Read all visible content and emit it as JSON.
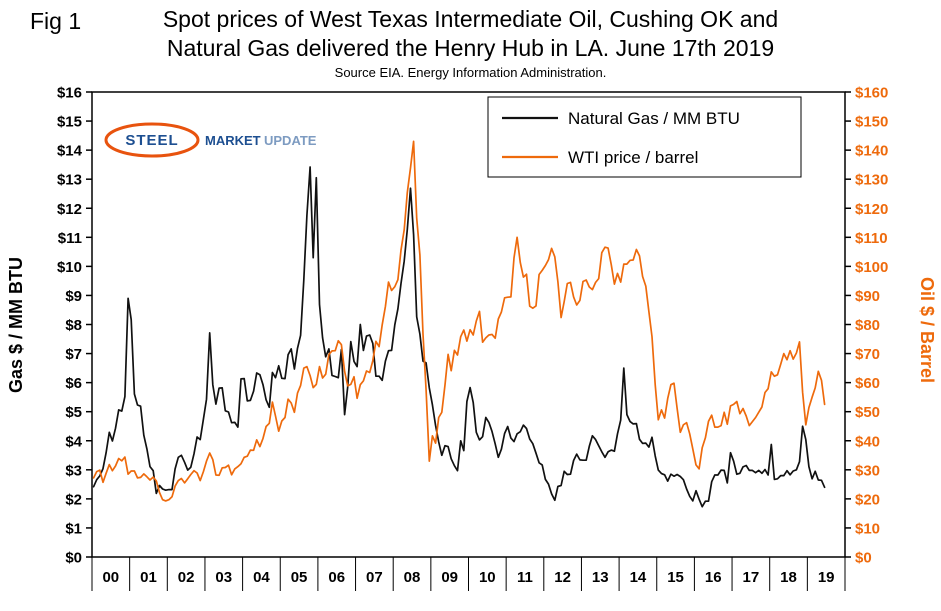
{
  "header": {
    "fig_label": "Fig 1",
    "title_line1": "Spot prices of West Texas Intermediate Oil, Cushing OK and",
    "title_line2": "Natural Gas delivered the Henry Hub in LA. June 17th 2019",
    "source": "Source EIA. Energy Information Administration."
  },
  "logo": {
    "word1": "STEEL",
    "word2": "MARKET",
    "word3": "UPDATE"
  },
  "colors": {
    "gas_line": "#111111",
    "oil_line": "#ee6a0c",
    "axis_black": "#000000",
    "logo_orange": "#e8530e",
    "logo_blue": "#1d4f91",
    "logo_light_blue": "#7d9bc1"
  },
  "chart_data": {
    "type": "line",
    "title": "Spot prices of West Texas Intermediate Oil, Cushing OK and Natural Gas delivered the Henry Hub in LA. June 17th 2019",
    "subtitle": "Source EIA. Energy Information Administration.",
    "grid": false,
    "legend_position": "top-right",
    "x_start_year": 2000,
    "x_range": [
      2000,
      2020
    ],
    "x_label_years": [
      "00",
      "01",
      "02",
      "03",
      "04",
      "05",
      "06",
      "07",
      "08",
      "09",
      "10",
      "11",
      "12",
      "13",
      "14",
      "15",
      "16",
      "17",
      "18",
      "19"
    ],
    "left_axis": {
      "title": "Gas $ / MM BTU",
      "ylim": [
        0,
        16
      ],
      "tick_step": 1,
      "tick_prefix": "$",
      "color": "#000000"
    },
    "right_axis": {
      "title": "Oil $ / Barrel",
      "ylim": [
        0,
        160
      ],
      "tick_step": 10,
      "tick_prefix": "$",
      "color": "#ee6a0c"
    },
    "series": [
      {
        "name": "Natural Gas / MM BTU",
        "axis": "left",
        "color": "#111111",
        "monthly_values": [
          2.42,
          2.66,
          2.79,
          3.04,
          3.59,
          4.29,
          3.99,
          4.43,
          5.06,
          5.02,
          5.52,
          8.9,
          8.17,
          5.61,
          5.23,
          5.19,
          4.19,
          3.72,
          3.11,
          2.97,
          2.19,
          2.46,
          2.34,
          2.3,
          2.32,
          2.32,
          3.03,
          3.43,
          3.5,
          3.26,
          2.99,
          3.09,
          3.55,
          4.13,
          4.04,
          4.74,
          5.43,
          7.71,
          5.93,
          5.26,
          5.81,
          5.82,
          5.03,
          4.99,
          4.62,
          4.63,
          4.47,
          6.13,
          6.14,
          5.37,
          5.39,
          5.71,
          6.33,
          6.27,
          5.93,
          5.41,
          5.15,
          6.35,
          6.17,
          6.58,
          6.15,
          6.14,
          6.96,
          7.16,
          6.47,
          7.18,
          7.63,
          9.53,
          11.75,
          13.42,
          10.3,
          13.05,
          8.69,
          7.54,
          6.89,
          7.16,
          6.25,
          6.21,
          6.17,
          7.14,
          4.9,
          5.85,
          7.41,
          6.73,
          6.55,
          8.0,
          7.11,
          7.6,
          7.64,
          7.35,
          6.22,
          6.22,
          6.08,
          6.74,
          7.1,
          7.11,
          7.99,
          8.54,
          9.41,
          10.18,
          11.27,
          12.69,
          11.09,
          8.26,
          7.67,
          6.74,
          6.68,
          5.82,
          5.24,
          4.52,
          3.96,
          3.5,
          3.83,
          3.8,
          3.38,
          3.14,
          2.97,
          4.0,
          3.66,
          5.35,
          5.83,
          5.32,
          4.29,
          4.03,
          4.14,
          4.8,
          4.63,
          4.32,
          3.89,
          3.43,
          3.71,
          4.25,
          4.49,
          4.09,
          3.97,
          4.24,
          4.31,
          4.54,
          4.42,
          4.06,
          3.9,
          3.57,
          3.24,
          3.17,
          2.67,
          2.51,
          2.17,
          1.95,
          2.43,
          2.46,
          2.95,
          2.84,
          2.85,
          3.32,
          3.54,
          3.34,
          3.33,
          3.33,
          3.81,
          4.17,
          4.04,
          3.83,
          3.62,
          3.43,
          3.62,
          3.68,
          3.64,
          4.24,
          4.71,
          6.5,
          4.9,
          4.66,
          4.58,
          4.59,
          4.05,
          3.91,
          3.92,
          3.78,
          4.12,
          3.48,
          2.99,
          2.87,
          2.83,
          2.61,
          2.85,
          2.78,
          2.84,
          2.77,
          2.66,
          2.34,
          2.09,
          1.93,
          2.28,
          1.99,
          1.73,
          1.92,
          1.92,
          2.59,
          2.82,
          2.82,
          2.99,
          2.98,
          2.55,
          3.59,
          3.3,
          2.85,
          2.88,
          3.1,
          3.15,
          2.98,
          2.98,
          2.9,
          2.98,
          2.88,
          3.01,
          2.82,
          3.87,
          2.67,
          2.69,
          2.8,
          2.8,
          2.97,
          2.83,
          2.96,
          3.0,
          3.28,
          4.5,
          4.04,
          3.11,
          2.69,
          2.95,
          2.65,
          2.64,
          2.4
        ]
      },
      {
        "name": "WTI price / barrel",
        "axis": "right",
        "color": "#ee6a0c",
        "monthly_values": [
          27.2,
          29.4,
          29.9,
          25.7,
          28.8,
          31.8,
          29.7,
          31.3,
          33.9,
          33.1,
          34.4,
          28.5,
          29.6,
          29.6,
          27.2,
          27.4,
          28.6,
          27.6,
          26.5,
          27.5,
          26.2,
          22.2,
          19.7,
          19.3,
          19.7,
          20.7,
          24.4,
          26.3,
          27.0,
          25.5,
          26.9,
          28.4,
          29.7,
          28.9,
          26.3,
          29.4,
          33.0,
          35.8,
          33.5,
          28.2,
          28.1,
          30.7,
          30.8,
          31.6,
          28.3,
          30.3,
          31.1,
          32.1,
          34.3,
          34.7,
          36.8,
          36.7,
          40.3,
          38.0,
          40.8,
          44.9,
          46.0,
          53.3,
          48.5,
          43.3,
          46.8,
          48.0,
          54.3,
          53.0,
          49.8,
          56.4,
          59.0,
          65.0,
          65.5,
          62.4,
          58.3,
          59.4,
          65.5,
          61.6,
          62.9,
          69.7,
          70.9,
          71.0,
          74.4,
          73.1,
          63.9,
          58.9,
          59.4,
          62.0,
          54.6,
          59.3,
          60.6,
          64.0,
          63.5,
          67.5,
          74.2,
          72.4,
          79.9,
          86.2,
          94.6,
          91.7,
          93.0,
          95.4,
          105.6,
          112.6,
          125.4,
          133.9,
          143.0,
          116.6,
          103.9,
          76.7,
          57.4,
          33.0,
          41.7,
          39.2,
          48.0,
          49.8,
          59.2,
          69.7,
          64.1,
          71.1,
          69.5,
          75.8,
          78.1,
          74.3,
          78.2,
          76.4,
          81.2,
          84.5,
          73.9,
          75.4,
          76.4,
          76.6,
          75.3,
          81.9,
          84.3,
          89.2,
          89.4,
          89.5,
          102.9,
          110.0,
          101.3,
          96.3,
          97.3,
          86.3,
          85.6,
          86.4,
          97.2,
          98.6,
          100.3,
          102.3,
          106.2,
          103.3,
          94.7,
          82.4,
          87.9,
          94.1,
          94.5,
          89.5,
          86.7,
          88.3,
          94.8,
          95.3,
          92.9,
          92.0,
          94.5,
          95.8,
          104.7,
          106.6,
          106.3,
          100.5,
          93.9,
          97.6,
          94.6,
          100.8,
          100.8,
          102.1,
          102.2,
          105.8,
          103.6,
          96.5,
          93.2,
          84.4,
          75.8,
          59.3,
          47.2,
          50.6,
          47.8,
          54.5,
          59.3,
          59.8,
          51.2,
          42.9,
          45.5,
          46.2,
          42.4,
          37.2,
          31.7,
          30.3,
          37.6,
          41.0,
          46.7,
          48.8,
          44.7,
          44.7,
          45.2,
          49.8,
          45.7,
          52.0,
          52.5,
          53.5,
          49.3,
          51.1,
          48.5,
          45.2,
          46.6,
          48.0,
          49.8,
          51.6,
          56.6,
          57.9,
          63.7,
          62.2,
          62.7,
          66.3,
          70.0,
          67.9,
          71.0,
          68.1,
          70.2,
          74.0,
          56.7,
          45.5,
          51.4,
          55.0,
          58.2,
          63.9,
          60.8,
          52.5
        ]
      }
    ]
  }
}
